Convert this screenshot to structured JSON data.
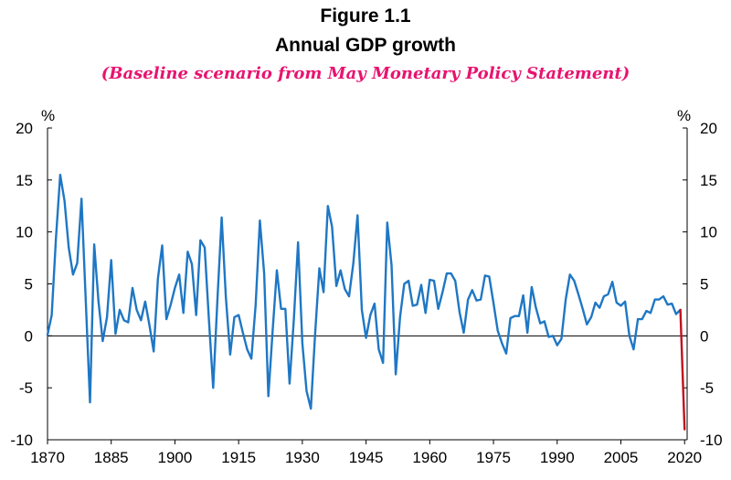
{
  "header": {
    "figure_label": "Figure 1.1",
    "title": "Annual GDP growth",
    "subtitle": "(Baseline scenario from May Monetary Policy Statement)"
  },
  "colors": {
    "series_main": "#1f77c4",
    "series_projection": "#c0101e",
    "subtitle": "#e8136f"
  },
  "chart_data": {
    "type": "line",
    "title": "Annual GDP growth",
    "subtitle": "(Baseline scenario from May Monetary Policy Statement)",
    "xlabel": "",
    "ylabel": "%",
    "ylabel_right": "%",
    "xlim": [
      1870,
      2022
    ],
    "ylim": [
      -10,
      20
    ],
    "x_ticks": [
      1870,
      1885,
      1900,
      1915,
      1930,
      1945,
      1960,
      1975,
      1990,
      2005,
      2020
    ],
    "y_ticks": [
      -10,
      -5,
      0,
      5,
      10,
      15,
      20
    ],
    "zero_line": true,
    "grid": false,
    "legend": "none",
    "series": [
      {
        "key": "actual",
        "x": [
          1870,
          1871,
          1872,
          1873,
          1874,
          1875,
          1876,
          1877,
          1878,
          1879,
          1880,
          1881,
          1882,
          1883,
          1884,
          1885,
          1886,
          1887,
          1888,
          1889,
          1890,
          1891,
          1892,
          1893,
          1894,
          1895,
          1896,
          1897,
          1898,
          1899,
          1900,
          1901,
          1902,
          1903,
          1904,
          1905,
          1906,
          1907,
          1908,
          1909,
          1910,
          1911,
          1912,
          1913,
          1914,
          1915,
          1916,
          1917,
          1918,
          1919,
          1920,
          1921,
          1922,
          1923,
          1924,
          1925,
          1926,
          1927,
          1928,
          1929,
          1930,
          1931,
          1932,
          1933,
          1934,
          1935,
          1936,
          1937,
          1938,
          1939,
          1940,
          1941,
          1942,
          1943,
          1944,
          1945,
          1946,
          1947,
          1948,
          1949,
          1950,
          1951,
          1952,
          1953,
          1954,
          1955,
          1956,
          1957,
          1958,
          1959,
          1960,
          1961,
          1962,
          1963,
          1964,
          1965,
          1966,
          1967,
          1968,
          1969,
          1970,
          1971,
          1972,
          1973,
          1974,
          1975,
          1976,
          1977,
          1978,
          1979,
          1980,
          1981,
          1982,
          1983,
          1984,
          1985,
          1986,
          1987,
          1988,
          1989,
          1990,
          1991,
          1992,
          1993,
          1994,
          1995,
          1996,
          1997,
          1998,
          1999,
          2000,
          2001,
          2002,
          2003,
          2004,
          2005,
          2006,
          2007,
          2008,
          2009,
          2010,
          2011,
          2012,
          2013,
          2014,
          2015,
          2016,
          2017,
          2018,
          2019
        ],
        "y": [
          0.1,
          2.0,
          9.5,
          15.5,
          13.0,
          8.5,
          5.9,
          7.0,
          13.2,
          3.5,
          -6.4,
          8.8,
          3.3,
          -0.5,
          1.8,
          7.3,
          0.2,
          2.5,
          1.5,
          1.3,
          4.6,
          2.5,
          1.5,
          3.3,
          1.0,
          -1.5,
          5.5,
          8.7,
          1.6,
          3.0,
          4.6,
          5.9,
          2.2,
          8.1,
          6.9,
          2.0,
          9.2,
          8.5,
          1.6,
          -5.0,
          3.4,
          11.4,
          3.7,
          -1.8,
          1.8,
          2.0,
          0.3,
          -1.3,
          -2.2,
          3.0,
          11.1,
          6.0,
          -5.8,
          0.4,
          6.3,
          2.6,
          2.6,
          -4.6,
          1.6,
          9.0,
          -0.7,
          -5.3,
          -7.0,
          0.1,
          6.5,
          4.2,
          12.5,
          10.5,
          4.8,
          6.3,
          4.5,
          3.8,
          7.0,
          11.6,
          2.5,
          -0.2,
          2.0,
          3.1,
          -1.3,
          -2.6,
          10.9,
          6.8,
          -3.7,
          1.8,
          5.0,
          5.3,
          2.9,
          3.0,
          4.9,
          2.2,
          5.4,
          5.3,
          2.6,
          4.2,
          6.0,
          6.0,
          5.3,
          2.3,
          0.3,
          3.5,
          4.4,
          3.4,
          3.5,
          5.8,
          5.7,
          3.2,
          0.5,
          -0.7,
          -1.7,
          1.7,
          1.9,
          1.9,
          3.9,
          0.3,
          4.7,
          2.7,
          1.2,
          1.4,
          -0.1,
          0.0,
          -0.9,
          -0.3,
          3.5,
          5.9,
          5.3,
          4.0,
          2.6,
          1.1,
          1.8,
          3.2,
          2.7,
          3.8,
          4.0,
          5.2,
          3.2,
          2.9,
          3.3,
          0.0,
          -1.3,
          1.6,
          1.6,
          2.4,
          2.2,
          3.5,
          3.5,
          3.8,
          3.0,
          3.1,
          2.1,
          2.5
        ]
      },
      {
        "key": "projection",
        "x": [
          2019,
          2020
        ],
        "y": [
          2.5,
          -9.0
        ]
      }
    ]
  }
}
